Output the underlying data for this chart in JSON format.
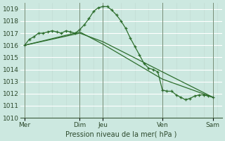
{
  "bg_color": "#cce8e0",
  "grid_color": "#b8d8d0",
  "grid_color_major": "#ffffff",
  "line_color": "#2d6e2d",
  "ylabel_text": "Pression niveau de la mer( hPa )",
  "ylim": [
    1010,
    1019.5
  ],
  "yticks": [
    1010,
    1011,
    1012,
    1013,
    1014,
    1015,
    1016,
    1017,
    1018,
    1019
  ],
  "xlim": [
    0,
    88
  ],
  "xtick_labels": [
    "Mer",
    "Dim",
    "Jeu",
    "Ven",
    "Sam"
  ],
  "xtick_positions": [
    2,
    26,
    36,
    62,
    84
  ],
  "vline_positions": [
    2,
    26,
    36,
    62,
    84
  ],
  "series1_x": [
    2,
    4,
    6,
    8,
    10,
    12,
    14,
    16,
    18,
    20,
    22,
    24,
    26,
    28,
    30,
    32,
    34,
    36,
    38,
    40,
    42,
    44,
    46,
    48,
    50,
    52,
    54,
    56,
    58,
    60,
    62,
    64,
    66,
    68,
    70,
    72,
    74,
    76,
    78,
    80,
    82,
    84
  ],
  "series1_y": [
    1016.0,
    1016.5,
    1016.7,
    1017.0,
    1017.0,
    1017.1,
    1017.2,
    1017.1,
    1017.0,
    1017.2,
    1017.1,
    1017.0,
    1017.3,
    1017.7,
    1018.2,
    1018.8,
    1019.1,
    1019.2,
    1019.2,
    1018.9,
    1018.5,
    1018.0,
    1017.4,
    1016.6,
    1015.9,
    1015.2,
    1014.5,
    1014.1,
    1014.0,
    1013.8,
    1012.3,
    1012.2,
    1012.2,
    1011.9,
    1011.7,
    1011.5,
    1011.6,
    1011.8,
    1011.9,
    1011.9,
    1011.8,
    1011.7
  ],
  "series2_x": [
    2,
    26,
    36,
    62,
    84
  ],
  "series2_y": [
    1016.0,
    1017.0,
    1016.3,
    1013.8,
    1011.7
  ],
  "series3_x": [
    2,
    26,
    36,
    62,
    84
  ],
  "series3_y": [
    1016.0,
    1017.1,
    1016.1,
    1013.2,
    1011.7
  ]
}
